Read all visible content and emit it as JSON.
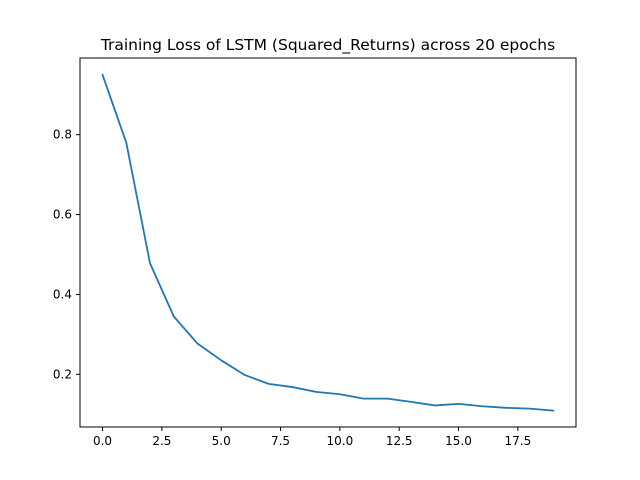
{
  "chart_data": {
    "type": "line",
    "title": "Training Loss of LSTM (Squared_Returns) across 20 epochs",
    "xlabel": "",
    "ylabel": "",
    "x": [
      0,
      1,
      2,
      3,
      4,
      5,
      6,
      7,
      8,
      9,
      10,
      11,
      12,
      13,
      14,
      15,
      16,
      17,
      18,
      19
    ],
    "series": [
      {
        "values": [
          0.95,
          0.78,
          0.478,
          0.345,
          0.277,
          0.235,
          0.198,
          0.176,
          0.168,
          0.156,
          0.15,
          0.139,
          0.139,
          0.131,
          0.122,
          0.126,
          0.12,
          0.116,
          0.114,
          0.109
        ],
        "color": "#1f77b4"
      }
    ],
    "xlim": [
      -0.95,
      19.95
    ],
    "ylim": [
      0.068,
      0.992
    ],
    "xticks": [
      0.0,
      2.5,
      5.0,
      7.5,
      10.0,
      12.5,
      15.0,
      17.5
    ],
    "xtick_labels": [
      "0.0",
      "2.5",
      "5.0",
      "7.5",
      "10.0",
      "12.5",
      "15.0",
      "17.5"
    ],
    "yticks": [
      0.2,
      0.4,
      0.6,
      0.8
    ],
    "ytick_labels": [
      "0.2",
      "0.4",
      "0.6",
      "0.8"
    ],
    "grid": false,
    "legend": "none"
  }
}
